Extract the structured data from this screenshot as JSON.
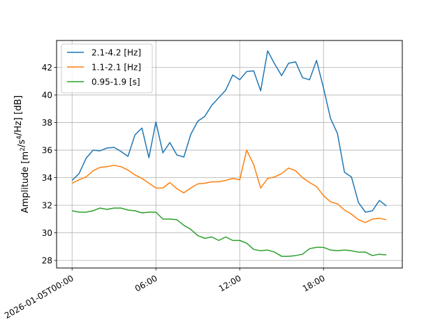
{
  "chart_data": {
    "type": "line",
    "x_hours": [
      0,
      0.5,
      1,
      1.5,
      2,
      2.5,
      3,
      3.5,
      4,
      4.5,
      5,
      5.5,
      6,
      6.5,
      7,
      7.5,
      8,
      8.5,
      9,
      9.5,
      10,
      10.5,
      11,
      11.5,
      12,
      12.5,
      13,
      13.5,
      14,
      14.5,
      15,
      15.5,
      16,
      16.5,
      17,
      17.5,
      18,
      18.5,
      19,
      19.5,
      20,
      20.5,
      21,
      21.5,
      22,
      22.5
    ],
    "series": [
      {
        "name": "2.1-4.2 [Hz]",
        "color": "#1f77b4",
        "values": [
          33.8,
          34.3,
          35.4,
          36.0,
          35.95,
          36.15,
          36.2,
          35.9,
          35.55,
          37.1,
          37.6,
          35.45,
          38.05,
          35.8,
          36.55,
          35.65,
          35.5,
          37.15,
          38.1,
          38.45,
          39.25,
          39.8,
          40.35,
          41.45,
          41.1,
          41.7,
          41.75,
          40.3,
          43.2,
          42.25,
          41.4,
          42.3,
          42.4,
          41.25,
          41.1,
          42.5,
          40.5,
          38.3,
          37.2,
          34.4,
          34.05,
          32.2,
          31.5,
          31.6,
          32.35,
          31.95
        ]
      },
      {
        "name": "1.1-2.1 [Hz]",
        "color": "#ff7f0e",
        "values": [
          33.6,
          33.85,
          34.05,
          34.5,
          34.75,
          34.8,
          34.9,
          34.8,
          34.55,
          34.2,
          33.95,
          33.6,
          33.25,
          33.25,
          33.65,
          33.2,
          32.9,
          33.25,
          33.55,
          33.6,
          33.7,
          33.7,
          33.8,
          33.95,
          33.85,
          36.0,
          34.95,
          33.25,
          33.95,
          34.05,
          34.3,
          34.7,
          34.5,
          34.0,
          33.65,
          33.35,
          32.7,
          32.25,
          32.1,
          31.65,
          31.35,
          30.95,
          30.75,
          31.0,
          31.05,
          30.95
        ]
      },
      {
        "name": "0.95-1.9 [s]",
        "color": "#2ca02c",
        "values": [
          31.6,
          31.5,
          31.5,
          31.6,
          31.8,
          31.7,
          31.8,
          31.8,
          31.65,
          31.6,
          31.45,
          31.5,
          31.5,
          31.0,
          31.0,
          30.95,
          30.55,
          30.25,
          29.8,
          29.6,
          29.7,
          29.45,
          29.7,
          29.45,
          29.45,
          29.25,
          28.8,
          28.7,
          28.75,
          28.6,
          28.3,
          28.3,
          28.35,
          28.45,
          28.85,
          28.95,
          28.95,
          28.75,
          28.7,
          28.75,
          28.7,
          28.6,
          28.6,
          28.35,
          28.45,
          28.4
        ]
      }
    ],
    "x_ticks": [
      {
        "hour": 0,
        "label": "2026-01-05T00:00"
      },
      {
        "hour": 6,
        "label": "06:00"
      },
      {
        "hour": 12,
        "label": "12:00"
      },
      {
        "hour": 18,
        "label": "18:00"
      }
    ],
    "y_ticks": [
      28,
      30,
      32,
      34,
      36,
      38,
      40,
      42
    ],
    "xlim_hours": [
      -1.11,
      23.64
    ],
    "ylim": [
      27.45,
      43.95
    ],
    "ylabel": "Amplitude [m²/s⁴/Hz] [dB]",
    "grid": true,
    "legend_position": "upper-left"
  }
}
